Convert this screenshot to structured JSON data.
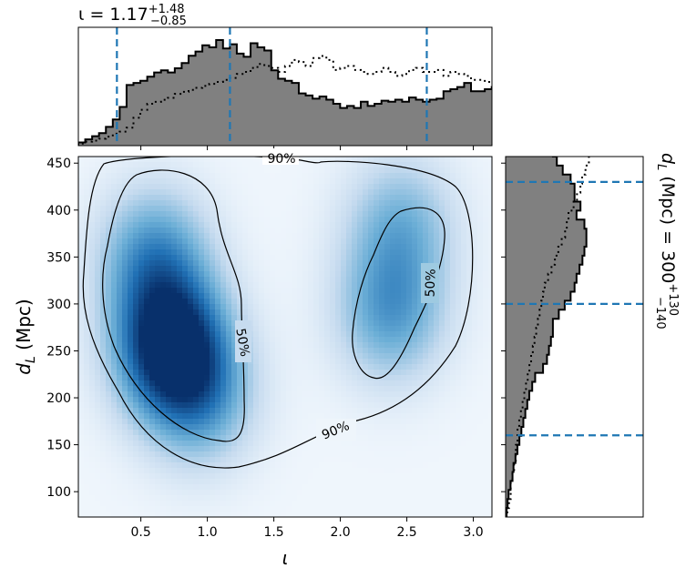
{
  "chart_data": {
    "type": "corner-plot",
    "top_title": {
      "prefix": "ι = 1.17",
      "sup": "+1.48",
      "sub": "−0.85"
    },
    "right_title": {
      "prefix": "d",
      "subscript": "L",
      "suffix": " (Mpc) = 300",
      "sup": "+130",
      "sub": "−140"
    },
    "xlabel": "ι",
    "ylabel": {
      "main": "d",
      "subscript": "L",
      "suffix": " (Mpc)"
    },
    "xlim": [
      0.03,
      3.14
    ],
    "ylim": [
      73,
      457
    ],
    "xticks": [
      0.5,
      1.0,
      1.5,
      2.0,
      2.5,
      3.0
    ],
    "xtick_labels": [
      "0.5",
      "1.0",
      "1.5",
      "2.0",
      "2.5",
      "3.0"
    ],
    "yticks": [
      100,
      150,
      200,
      250,
      300,
      350,
      400,
      450
    ],
    "ytick_labels": [
      "100",
      "150",
      "200",
      "250",
      "300",
      "350",
      "400",
      "450"
    ],
    "colors": {
      "hist_fill": "#808080",
      "quantile_line": "#1f77b4",
      "density_low": "#f7fbff",
      "density_high": "#08306b"
    },
    "iota_quantiles": [
      0.32,
      1.17,
      2.65
    ],
    "dl_quantiles": [
      160,
      300,
      430
    ],
    "contour_labels": [
      "90%",
      "50%",
      "50%",
      "90%"
    ],
    "density_peaks": [
      {
        "iota": 0.72,
        "dl": 255,
        "weight": 1.0
      },
      {
        "iota": 0.95,
        "dl": 200,
        "weight": 0.45
      },
      {
        "iota": 0.6,
        "dl": 350,
        "weight": 0.55
      },
      {
        "iota": 2.38,
        "dl": 290,
        "weight": 0.5
      },
      {
        "iota": 2.45,
        "dl": 385,
        "weight": 0.4
      }
    ],
    "iota_hist": {
      "edges_start": 0.03,
      "bin_width": 0.0518,
      "posterior": [
        3,
        6,
        9,
        12,
        18,
        25,
        37,
        58,
        60,
        62,
        66,
        70,
        72,
        70,
        74,
        79,
        86,
        90,
        96,
        94,
        101,
        93,
        97,
        88,
        85,
        98,
        94,
        91,
        72,
        64,
        62,
        60,
        50,
        48,
        45,
        47,
        44,
        40,
        36,
        38,
        36,
        42,
        38,
        40,
        43,
        42,
        44,
        42,
        46,
        44,
        42,
        44,
        45,
        52,
        54,
        56,
        60,
        52,
        52,
        54,
        56,
        66,
        70,
        70,
        68,
        76,
        62,
        54,
        40,
        32,
        26,
        22,
        20,
        18,
        14,
        10,
        8,
        6,
        5,
        4
      ],
      "prior": [
        2,
        4,
        5,
        7,
        9,
        12,
        14,
        18,
        28,
        36,
        42,
        44,
        46,
        48,
        52,
        54,
        56,
        58,
        60,
        62,
        64,
        66,
        68,
        72,
        74,
        78,
        82,
        80,
        78,
        74,
        80,
        86,
        84,
        80,
        88,
        90,
        86,
        76,
        78,
        80,
        76,
        74,
        72,
        74,
        78,
        74,
        70,
        72,
        76,
        78,
        74,
        74,
        76,
        70,
        74,
        72,
        70,
        66,
        66,
        64,
        62,
        60,
        60,
        58,
        56,
        50,
        48,
        46,
        42,
        40,
        36,
        30,
        26,
        22,
        18,
        14,
        10,
        8,
        6,
        4
      ]
    },
    "dl_hist": {
      "edges_start": 73,
      "bin_width": 9.6,
      "posterior": [
        1,
        2,
        3,
        5,
        7,
        8,
        10,
        12,
        14,
        16,
        18,
        20,
        22,
        24,
        27,
        30,
        38,
        42,
        44,
        46,
        48,
        48,
        54,
        60,
        66,
        70,
        72,
        75,
        78,
        80,
        82,
        82,
        80,
        72,
        76,
        70,
        70,
        66,
        58,
        52,
        48,
        46,
        50,
        46,
        48,
        42,
        44,
        40
      ],
      "prior": [
        2,
        4,
        6,
        6,
        8,
        10,
        12,
        12,
        14,
        14,
        16,
        18,
        20,
        22,
        24,
        26,
        28,
        30,
        32,
        34,
        36,
        38,
        40,
        42,
        44,
        46,
        50,
        54,
        58,
        62,
        66,
        70,
        72,
        74,
        80,
        84,
        88,
        90,
        94,
        98,
        102,
        106,
        110,
        116,
        120,
        124,
        128,
        132
      ]
    }
  }
}
